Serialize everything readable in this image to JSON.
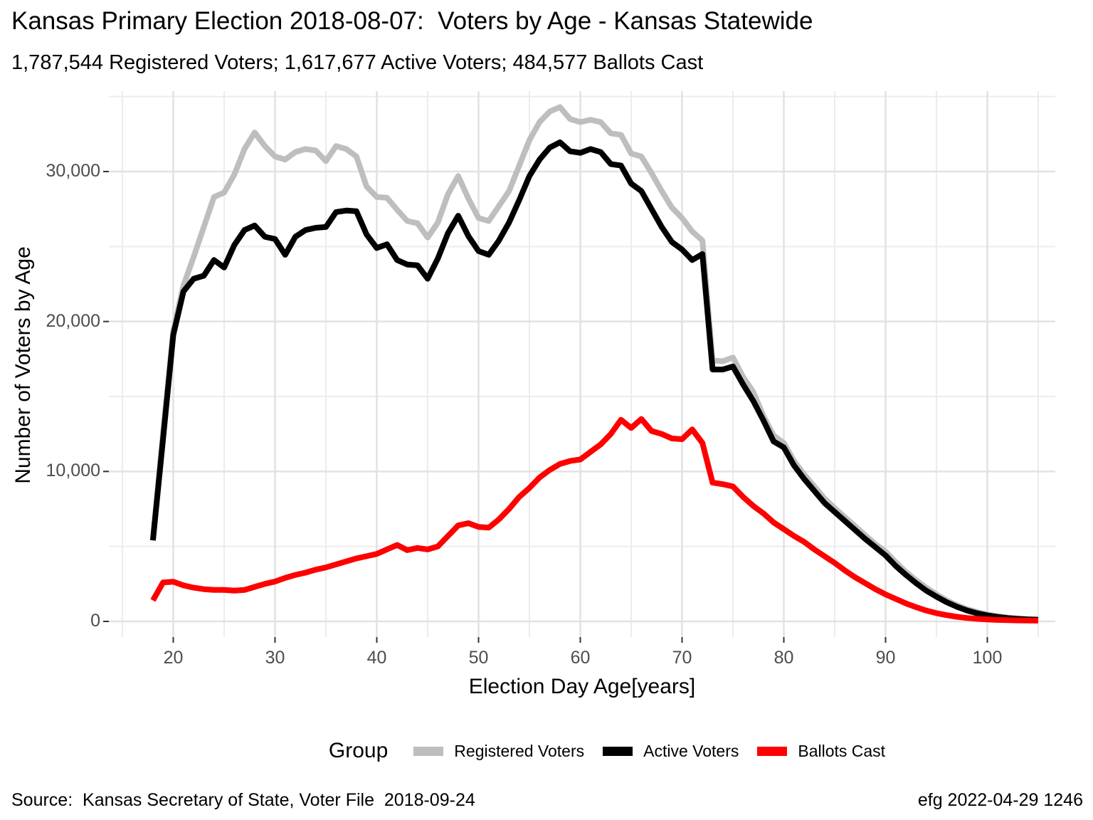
{
  "title": "Kansas Primary Election 2018-08-07:  Voters by Age - Kansas Statewide",
  "subtitle": "1,787,544 Registered Voters; 1,617,677 Active Voters; 484,577 Ballots Cast",
  "footer": {
    "source": "Source:  Kansas Secretary of State, Voter File  2018-09-24",
    "credit": "efg 2022-04-29 1246"
  },
  "legend": {
    "title": "Group",
    "items": [
      {
        "label": "Registered Voters",
        "color": "#bebebe"
      },
      {
        "label": "Active Voters",
        "color": "#000000"
      },
      {
        "label": "Ballots Cast",
        "color": "#ff0000"
      }
    ]
  },
  "chart_data": {
    "type": "line",
    "title": "Kansas Primary Election 2018-08-07:  Voters by Age - Kansas Statewide",
    "subtitle": "1,787,544 Registered Voters; 1,617,677 Active Voters; 484,577 Ballots Cast",
    "xlabel": "Election Day Age[years]",
    "ylabel": "Number of Voters by Age",
    "grid": true,
    "legend_position": "bottom",
    "xlim": [
      13.5,
      107
    ],
    "ylim": [
      -1000,
      35400
    ],
    "x_ticks": [
      20,
      30,
      40,
      50,
      60,
      70,
      80,
      90,
      100
    ],
    "x_minor_ticks": [
      15,
      25,
      35,
      45,
      55,
      65,
      75,
      85,
      95,
      105
    ],
    "y_ticks": [
      0,
      10000,
      20000,
      30000
    ],
    "y_tick_labels": [
      "0",
      "10,000",
      "20,000",
      "30,000"
    ],
    "y_minor_ticks": [
      5000,
      15000,
      25000,
      35000
    ],
    "x": [
      18,
      19,
      20,
      21,
      22,
      23,
      24,
      25,
      26,
      27,
      28,
      29,
      30,
      31,
      32,
      33,
      34,
      35,
      36,
      37,
      38,
      39,
      40,
      41,
      42,
      43,
      44,
      45,
      46,
      47,
      48,
      49,
      50,
      51,
      52,
      53,
      54,
      55,
      56,
      57,
      58,
      59,
      60,
      61,
      62,
      63,
      64,
      65,
      66,
      67,
      68,
      69,
      70,
      71,
      72,
      73,
      74,
      75,
      76,
      77,
      78,
      79,
      80,
      81,
      82,
      83,
      84,
      85,
      86,
      87,
      88,
      89,
      90,
      91,
      92,
      93,
      94,
      95,
      96,
      97,
      98,
      99,
      100,
      101,
      102,
      103,
      104,
      105
    ],
    "series": [
      {
        "name": "Registered Voters",
        "color": "#bebebe",
        "values": [
          5450,
          12600,
          19400,
          22400,
          24300,
          26300,
          28300,
          28600,
          29800,
          31500,
          32600,
          31700,
          31000,
          30800,
          31300,
          31500,
          31400,
          30700,
          31700,
          31500,
          31000,
          29000,
          28300,
          28250,
          27450,
          26700,
          26550,
          25600,
          26600,
          28500,
          29700,
          28200,
          26900,
          26700,
          27700,
          28700,
          30400,
          32100,
          33300,
          34000,
          34300,
          33500,
          33300,
          33450,
          33300,
          32550,
          32450,
          31200,
          31000,
          29900,
          28700,
          27600,
          26900,
          26000,
          25400,
          17400,
          17350,
          17600,
          16300,
          15300,
          13700,
          12400,
          11900,
          10700,
          9800,
          9000,
          8200,
          7550,
          6950,
          6350,
          5750,
          5150,
          4650,
          3950,
          3300,
          2750,
          2250,
          1800,
          1400,
          1080,
          820,
          620,
          470,
          350,
          260,
          200,
          160,
          140
        ]
      },
      {
        "name": "Active Voters",
        "color": "#000000",
        "values": [
          5400,
          12200,
          19100,
          22000,
          22850,
          23050,
          24100,
          23600,
          25100,
          26100,
          26400,
          25650,
          25500,
          24450,
          25650,
          26100,
          26250,
          26300,
          27300,
          27400,
          27350,
          25800,
          24900,
          25150,
          24100,
          23800,
          23750,
          22850,
          24200,
          25900,
          27050,
          25700,
          24700,
          24450,
          25400,
          26600,
          28100,
          29700,
          30800,
          31600,
          31950,
          31350,
          31250,
          31500,
          31300,
          30500,
          30400,
          29200,
          28700,
          27500,
          26300,
          25300,
          24800,
          24100,
          24500,
          16800,
          16800,
          17000,
          15800,
          14700,
          13400,
          12000,
          11600,
          10400,
          9500,
          8700,
          7900,
          7300,
          6700,
          6100,
          5500,
          4950,
          4400,
          3700,
          3100,
          2550,
          2050,
          1650,
          1280,
          980,
          730,
          540,
          400,
          300,
          220,
          165,
          130,
          110
        ]
      },
      {
        "name": "Ballots Cast",
        "color": "#ff0000",
        "values": [
          1400,
          2600,
          2650,
          2400,
          2250,
          2150,
          2100,
          2100,
          2050,
          2100,
          2300,
          2500,
          2660,
          2900,
          3100,
          3250,
          3450,
          3600,
          3800,
          4000,
          4200,
          4350,
          4500,
          4800,
          5100,
          4750,
          4900,
          4800,
          5000,
          5700,
          6400,
          6550,
          6300,
          6250,
          6800,
          7500,
          8300,
          8900,
          9600,
          10100,
          10500,
          10700,
          10800,
          11300,
          11800,
          12500,
          13450,
          12900,
          13500,
          12700,
          12500,
          12200,
          12150,
          12800,
          11900,
          9250,
          9150,
          9000,
          8300,
          7700,
          7200,
          6600,
          6150,
          5700,
          5300,
          4800,
          4350,
          3900,
          3400,
          2950,
          2550,
          2150,
          1800,
          1500,
          1200,
          950,
          720,
          550,
          420,
          310,
          230,
          170,
          130,
          100,
          80,
          65,
          55,
          50
        ]
      }
    ]
  }
}
